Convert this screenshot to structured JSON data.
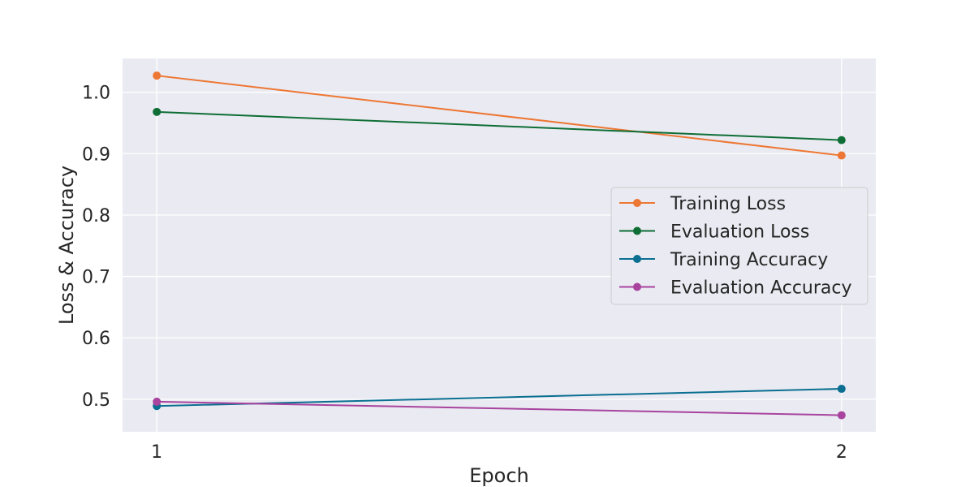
{
  "chart_data": {
    "type": "line",
    "title": "",
    "xlabel": "Epoch",
    "ylabel": "Loss & Accuracy",
    "x": [
      1,
      2
    ],
    "xticks": [
      "1",
      "2"
    ],
    "xlim": [
      0.95,
      2.05
    ],
    "ylim": [
      0.447,
      1.055
    ],
    "yticks": [
      "0.5",
      "0.6",
      "0.7",
      "0.8",
      "0.9",
      "1.0"
    ],
    "ytick_values": [
      0.5,
      0.6,
      0.7,
      0.8,
      0.9,
      1.0
    ],
    "grid": true,
    "legend_position": "center-right",
    "series": [
      {
        "name": "Training Loss",
        "values": [
          1.027,
          0.897
        ],
        "color": "#ed7734"
      },
      {
        "name": "Evaluation Loss",
        "values": [
          0.968,
          0.922
        ],
        "color": "#0e6e35"
      },
      {
        "name": "Training Accuracy",
        "values": [
          0.489,
          0.517
        ],
        "color": "#0a6f91"
      },
      {
        "name": "Evaluation Accuracy",
        "values": [
          0.496,
          0.474
        ],
        "color": "#a8449e"
      }
    ]
  }
}
